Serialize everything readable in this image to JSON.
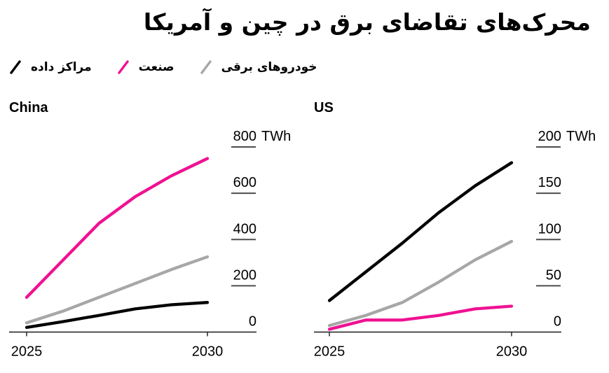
{
  "title": "محرک‌های تقاضای برق در چین و آمریکا",
  "legend": {
    "items": [
      {
        "key": "data-centers",
        "label": "مراکز داده",
        "color": "#000000"
      },
      {
        "key": "industry",
        "label": "صنعت",
        "color": "#ef1192"
      },
      {
        "key": "electric-vehicles",
        "label": "خودروهای برقی",
        "color": "#a7a7a7"
      }
    ]
  },
  "chart_data": [
    {
      "type": "line",
      "title": "China",
      "unit": "TWh",
      "x": [
        2025,
        2026,
        2027,
        2028,
        2029,
        2030
      ],
      "xticks": [
        "2025",
        "2030"
      ],
      "ylim": [
        0,
        800
      ],
      "yticks": [
        0,
        200,
        400,
        600,
        800
      ],
      "grid": false,
      "legend_position": "top-left",
      "series": [
        {
          "key": "electric-vehicles",
          "name": "خودروهای برقی",
          "color": "#a7a7a7",
          "values": [
            40,
            90,
            150,
            210,
            270,
            325
          ]
        },
        {
          "key": "data-centers",
          "name": "مراکز داده",
          "color": "#000000",
          "values": [
            20,
            45,
            72,
            100,
            118,
            128
          ]
        },
        {
          "key": "industry",
          "name": "صنعت",
          "color": "#ef1192",
          "values": [
            150,
            310,
            470,
            585,
            675,
            750
          ]
        }
      ]
    },
    {
      "type": "line",
      "title": "US",
      "unit": "TWh",
      "x": [
        2025,
        2026,
        2027,
        2028,
        2029,
        2030
      ],
      "xticks": [
        "2025",
        "2030"
      ],
      "ylim": [
        0,
        200
      ],
      "yticks": [
        0,
        50,
        100,
        150,
        200
      ],
      "grid": false,
      "legend_position": "top-left",
      "series": [
        {
          "key": "electric-vehicles",
          "name": "خودروهای برقی",
          "color": "#a7a7a7",
          "values": [
            7,
            18,
            32,
            54,
            78,
            98
          ]
        },
        {
          "key": "industry",
          "name": "صنعت",
          "color": "#ef1192",
          "values": [
            3,
            13,
            13,
            18,
            25,
            28
          ]
        },
        {
          "key": "data-centers",
          "name": "مراکز داده",
          "color": "#000000",
          "values": [
            34,
            65,
            96,
            129,
            158,
            183
          ]
        }
      ]
    }
  ]
}
